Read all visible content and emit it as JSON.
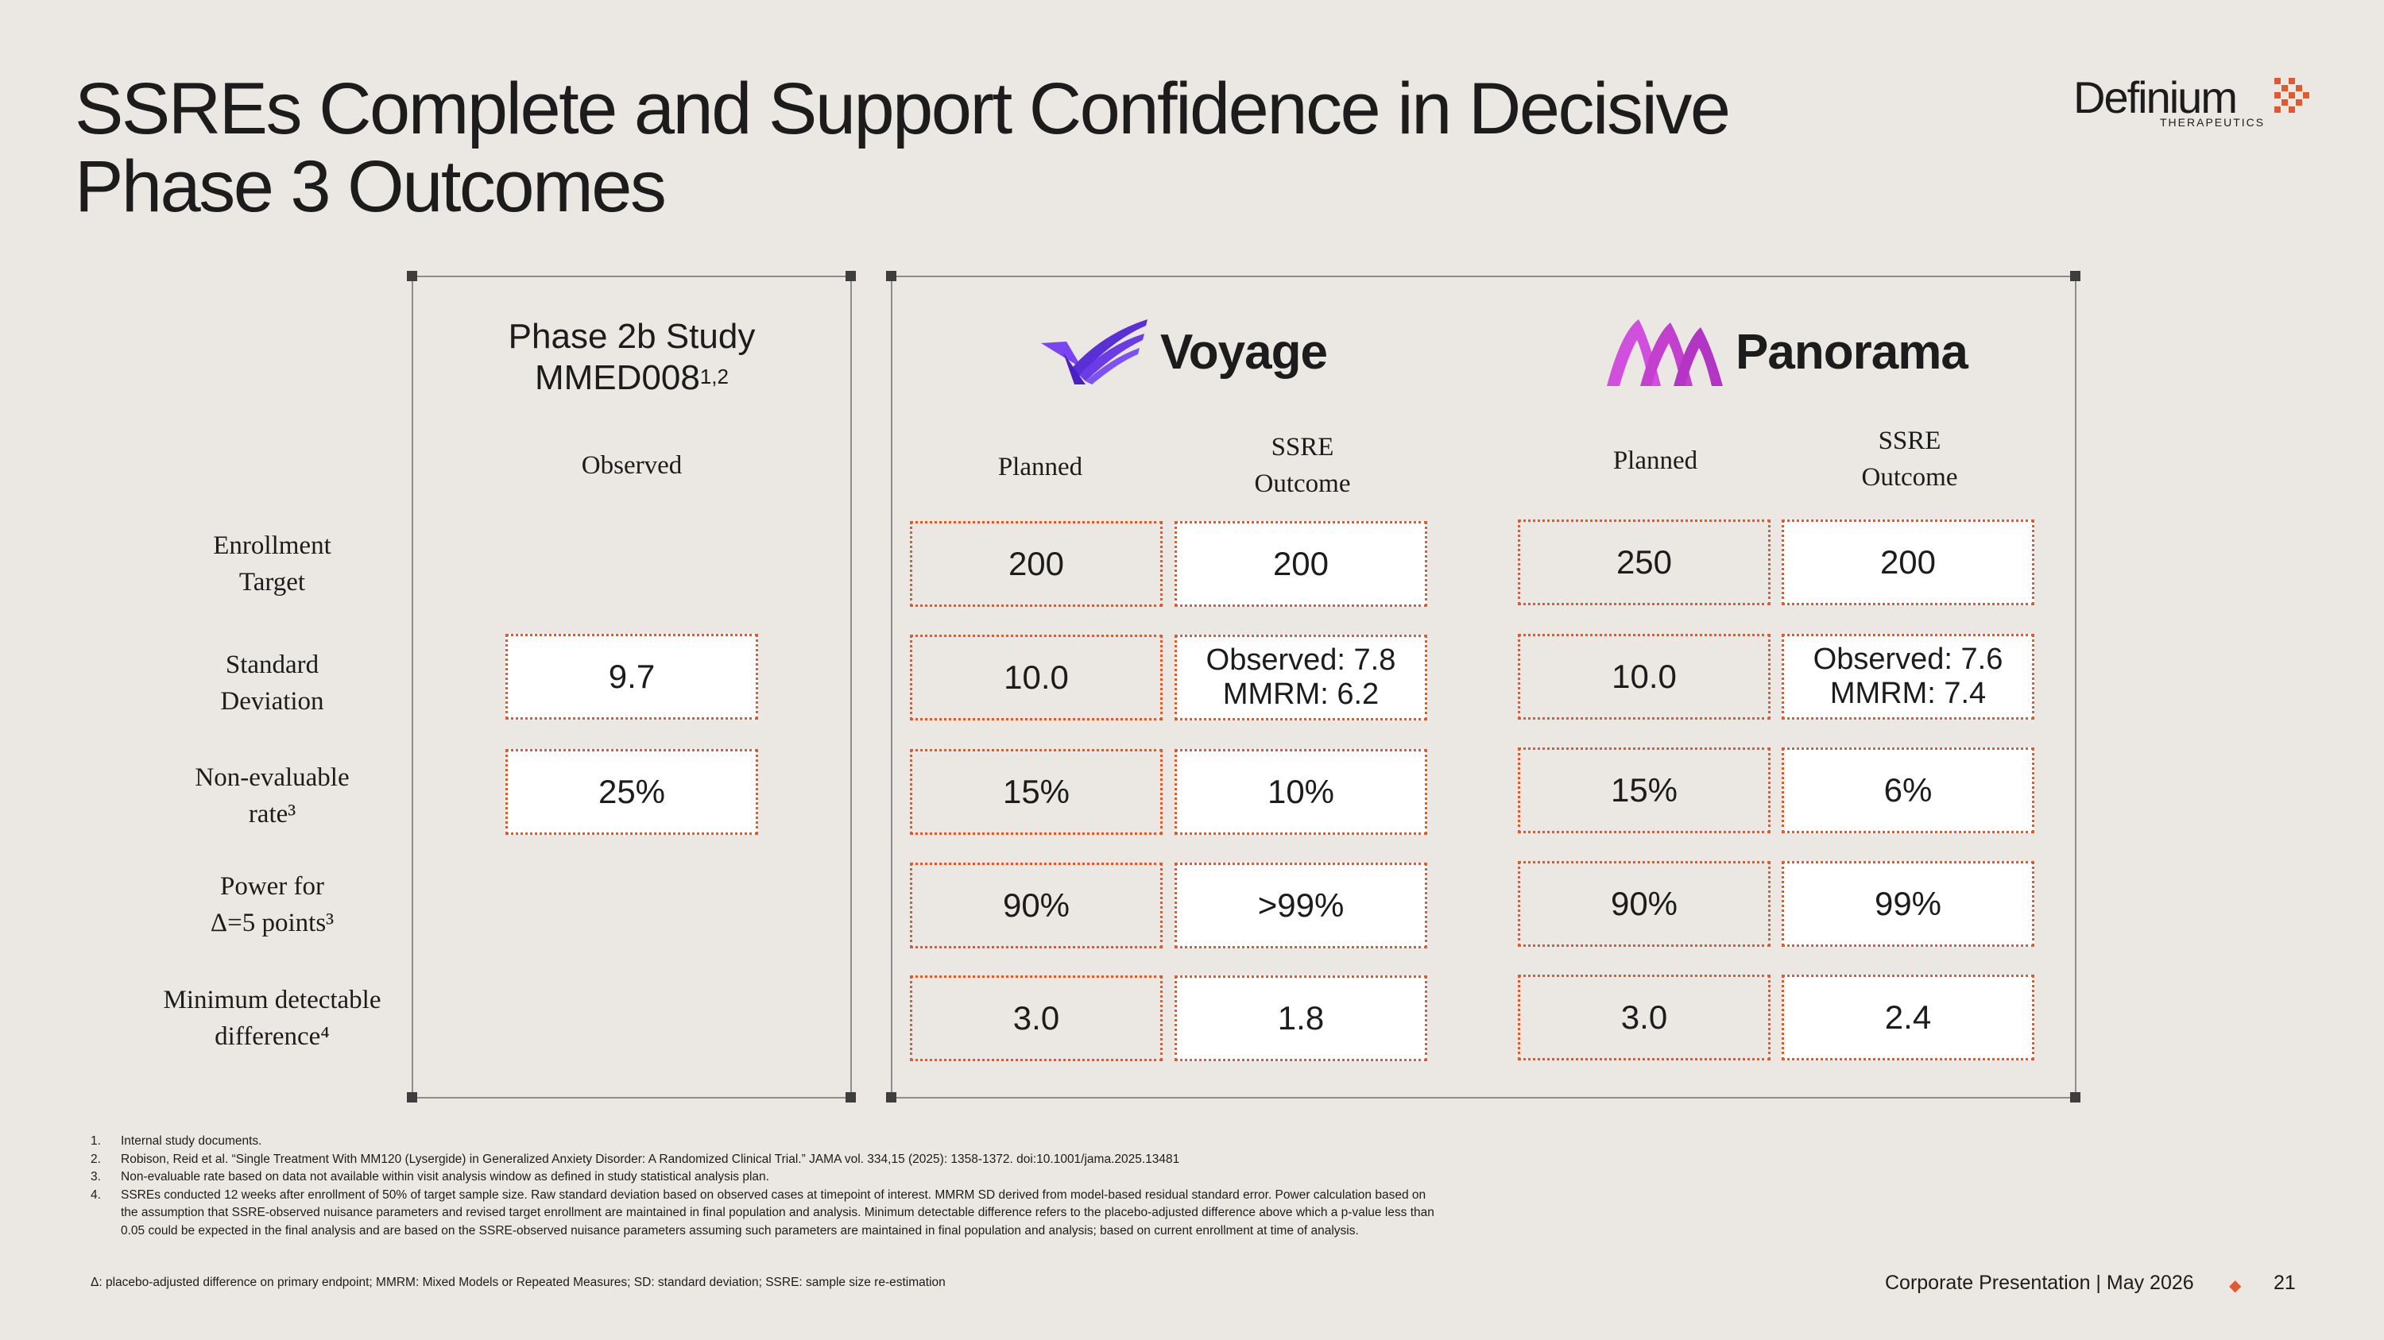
{
  "title": {
    "line1": "SSREs Complete and Support Confidence in Decisive",
    "line2": "Phase 3 Outcomes"
  },
  "logo": {
    "name": "Definium",
    "sub": "THERAPEUTICS",
    "mark_color": "#e05a2d"
  },
  "row_labels": [
    {
      "line1": "Enrollment",
      "line2": "Target"
    },
    {
      "line1": "Standard",
      "line2": "Deviation"
    },
    {
      "line1": "Non-evaluable",
      "line2": "rate³"
    },
    {
      "line1": "Power for",
      "line2": "Δ=5 points³"
    },
    {
      "line1": "Minimum detectable",
      "line2": "difference⁴"
    }
  ],
  "phase2": {
    "title_line1": "Phase 2b Study",
    "title_line2": "MMED008",
    "title_sup": "1,2",
    "col_head": "Observed",
    "values": [
      "9.7",
      "25%"
    ]
  },
  "voyage": {
    "name": "Voyage",
    "color": "#5b2fd6",
    "planned_head": "Planned",
    "ssre_head_1": "SSRE",
    "ssre_head_2": "Outcome",
    "planned": [
      "200",
      "10.0",
      "15%",
      "90%",
      "3.0"
    ],
    "ssre": [
      "200",
      "Observed: 7.8",
      "10%",
      ">99%",
      "1.8"
    ],
    "ssre_sd_line2": "MMRM: 6.2"
  },
  "panorama": {
    "name": "Panorama",
    "color": "#c93fcf",
    "planned_head": "Planned",
    "ssre_head_1": "SSRE",
    "ssre_head_2": "Outcome",
    "planned": [
      "250",
      "10.0",
      "15%",
      "90%",
      "3.0"
    ],
    "ssre": [
      "200",
      "Observed: 7.6",
      "6%",
      "99%",
      "2.4"
    ],
    "ssre_sd_line2": "MMRM: 7.4"
  },
  "footnotes": [
    {
      "num": "1.",
      "text": "Internal study documents."
    },
    {
      "num": "2.",
      "text": "Robison, Reid et al. “Single Treatment With MM120 (Lysergide) in Generalized Anxiety Disorder: A Randomized Clinical Trial.” JAMA vol. 334,15 (2025): 1358-1372. doi:10.1001/jama.2025.13481"
    },
    {
      "num": "3.",
      "text": "Non-evaluable rate based on data not available within visit analysis window as defined in study statistical analysis plan."
    },
    {
      "num": "4.",
      "text": "SSREs conducted 12 weeks after enrollment of 50% of target sample size. Raw standard deviation based on observed cases at timepoint of interest. MMRM SD derived from model-based residual standard error.  Power calculation based on the assumption that SSRE-observed nuisance parameters and revised target enrollment are maintained in final population and analysis. Minimum detectable difference refers to the placebo-adjusted difference above which a p-value less than 0.05 could be expected in the final analysis and are based on the SSRE-observed nuisance parameters assuming such parameters are maintained in final population and analysis; based on current enrollment at time of analysis."
    }
  ],
  "abbreviations": "Δ: placebo-adjusted difference on primary endpoint; MMRM: Mixed Models or Repeated Measures; SD: standard deviation; SSRE: sample size re-estimation",
  "footer": {
    "label": "Corporate Presentation | May 2026",
    "page": "21",
    "diamond": "◆"
  }
}
